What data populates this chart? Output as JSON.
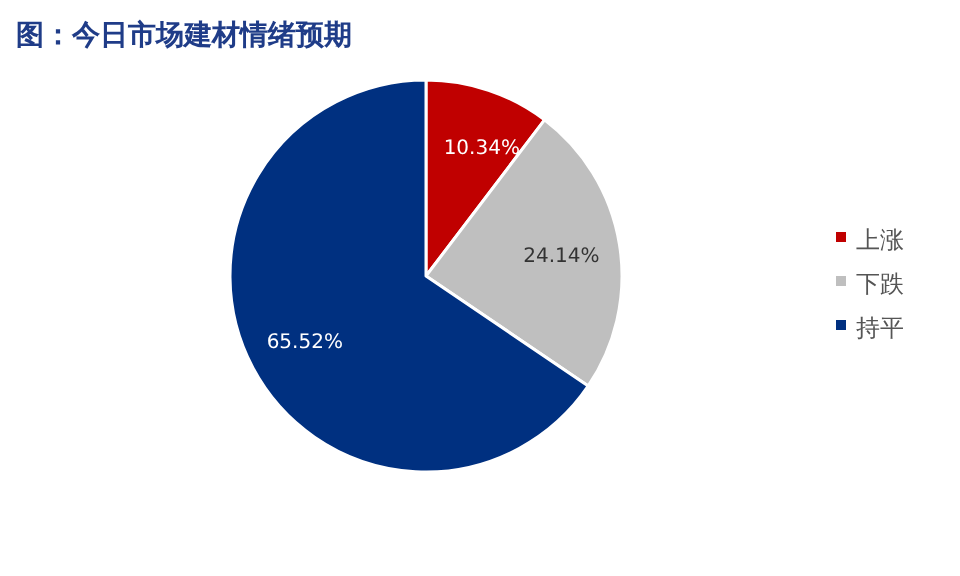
{
  "chart_data": {
    "type": "pie",
    "title": "图：今日市场建材情绪预期",
    "categories": [
      "上涨",
      "下跌",
      "持平"
    ],
    "values": [
      10.34,
      24.14,
      65.52
    ],
    "colors": [
      "#c00000",
      "#bfbfbf",
      "#003080"
    ],
    "value_labels": [
      "10.34%",
      "24.14%",
      "65.52%"
    ],
    "legend": "right"
  }
}
